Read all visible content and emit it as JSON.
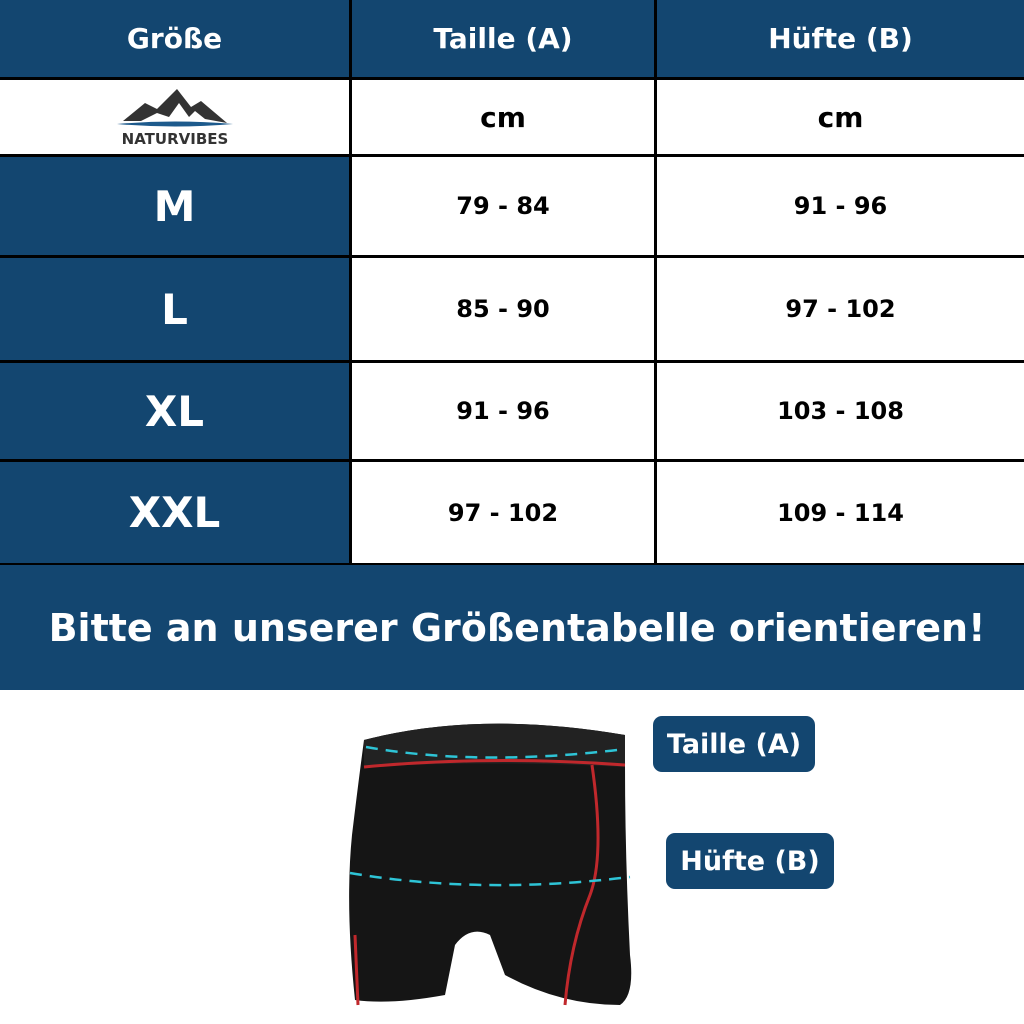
{
  "table": {
    "headers": [
      "Größe",
      "Taille (A)",
      "Hüfte (B)"
    ],
    "logo_text": "NATURVIBES",
    "units": [
      "cm",
      "cm"
    ],
    "rows": [
      {
        "size": "M",
        "waist": "79 - 84",
        "hip": "91 - 96"
      },
      {
        "size": "L",
        "waist": "85 - 90",
        "hip": "97 - 102"
      },
      {
        "size": "XL",
        "waist": "91 - 96",
        "hip": "103 - 108"
      },
      {
        "size": "XXL",
        "waist": "97 - 102",
        "hip": "109 - 114"
      }
    ]
  },
  "banner": "Bitte an unserer Größentabelle orientieren!",
  "labels": {
    "waist": "Taille (A)",
    "hip": "Hüfte (B)"
  },
  "colors": {
    "primary": "#134670",
    "measure_line": "#2ec4d6",
    "seam": "#c0282c"
  }
}
